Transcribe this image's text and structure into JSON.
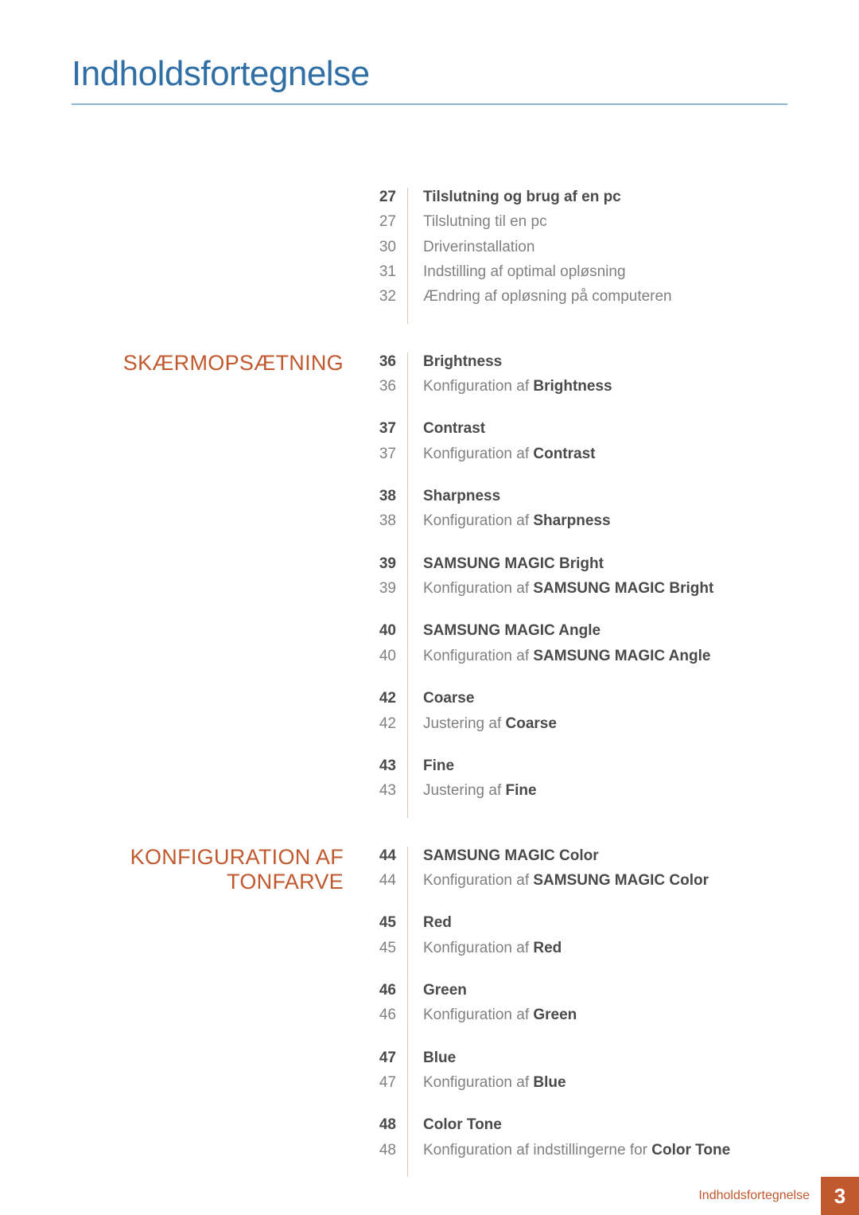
{
  "colors": {
    "title": "#2f6fa6",
    "rule": "#8fb6d2",
    "section_label": "#c1582e",
    "footer_label": "#c1582e",
    "footer_pagebox_bg": "#c1582e",
    "divider": "#d9c9b8",
    "text_bold": "#4a4a4a",
    "text_light": "#808080"
  },
  "title": "Indholdsfortegnelse",
  "footer": {
    "label": "Indholdsfortegnelse",
    "page": "3"
  },
  "sections": [
    {
      "label": "",
      "groups": [
        {
          "rows": [
            {
              "page": "27",
              "text": "Tilslutning og brug af en pc",
              "bold": true
            },
            {
              "page": "27",
              "text": "Tilslutning til en pc",
              "bold": false
            },
            {
              "page": "30",
              "text": "Driverinstallation",
              "bold": false
            },
            {
              "page": "31",
              "text": "Indstilling af optimal opløsning",
              "bold": false
            },
            {
              "page": "32",
              "text": "Ændring af opløsning på computeren",
              "bold": false
            }
          ]
        }
      ]
    },
    {
      "label": "SKÆRMOPSÆTNING",
      "groups": [
        {
          "rows": [
            {
              "page": "36",
              "text": "Brightness",
              "bold": true
            },
            {
              "page": "36",
              "prefix": "Konfiguration af ",
              "emph": "Brightness",
              "bold": false
            }
          ]
        },
        {
          "rows": [
            {
              "page": "37",
              "text": "Contrast",
              "bold": true
            },
            {
              "page": "37",
              "prefix": "Konfiguration af ",
              "emph": "Contrast",
              "bold": false
            }
          ]
        },
        {
          "rows": [
            {
              "page": "38",
              "text": "Sharpness",
              "bold": true
            },
            {
              "page": "38",
              "prefix": "Konfiguration af ",
              "emph": "Sharpness",
              "bold": false
            }
          ]
        },
        {
          "rows": [
            {
              "page": "39",
              "text": "SAMSUNG MAGIC Bright",
              "bold": true
            },
            {
              "page": "39",
              "prefix": "Konfiguration af ",
              "emph": "SAMSUNG MAGIC Bright",
              "bold": false
            }
          ]
        },
        {
          "rows": [
            {
              "page": "40",
              "text": "SAMSUNG MAGIC Angle",
              "bold": true
            },
            {
              "page": "40",
              "prefix": "Konfiguration af ",
              "emph": "SAMSUNG MAGIC Angle",
              "bold": false
            }
          ]
        },
        {
          "rows": [
            {
              "page": "42",
              "text": "Coarse",
              "bold": true
            },
            {
              "page": "42",
              "prefix": "Justering af ",
              "emph": "Coarse",
              "bold": false
            }
          ]
        },
        {
          "rows": [
            {
              "page": "43",
              "text": "Fine",
              "bold": true
            },
            {
              "page": "43",
              "prefix": "Justering af ",
              "emph": "Fine",
              "bold": false
            }
          ]
        }
      ]
    },
    {
      "label": "KONFIGURATION AF TONFARVE",
      "groups": [
        {
          "rows": [
            {
              "page": "44",
              "text": "SAMSUNG MAGIC Color",
              "bold": true
            },
            {
              "page": "44",
              "prefix": "Konfiguration af ",
              "emph": "SAMSUNG MAGIC Color",
              "bold": false
            }
          ]
        },
        {
          "rows": [
            {
              "page": "45",
              "text": "Red",
              "bold": true
            },
            {
              "page": "45",
              "prefix": "Konfiguration af ",
              "emph": "Red",
              "bold": false
            }
          ]
        },
        {
          "rows": [
            {
              "page": "46",
              "text": "Green",
              "bold": true
            },
            {
              "page": "46",
              "prefix": "Konfiguration af ",
              "emph": "Green",
              "bold": false
            }
          ]
        },
        {
          "rows": [
            {
              "page": "47",
              "text": "Blue",
              "bold": true
            },
            {
              "page": "47",
              "prefix": "Konfiguration af ",
              "emph": "Blue",
              "bold": false
            }
          ]
        },
        {
          "rows": [
            {
              "page": "48",
              "text": "Color Tone",
              "bold": true
            },
            {
              "page": "48",
              "prefix": "Konfiguration af indstillingerne for ",
              "emph": "Color Tone",
              "bold": false
            }
          ]
        }
      ]
    }
  ]
}
